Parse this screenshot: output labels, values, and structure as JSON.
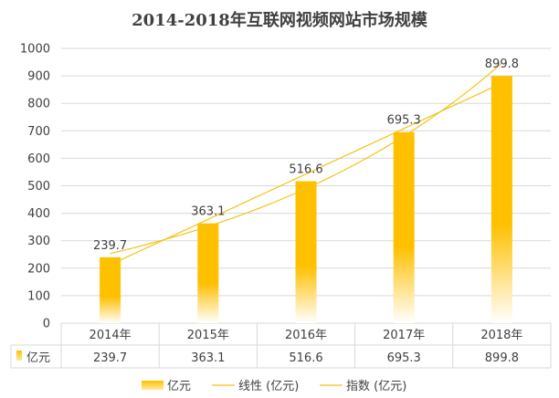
{
  "chart_data": {
    "type": "bar",
    "title": "2014-2018年互联网视频网站市场规模",
    "categories": [
      "2014年",
      "2015年",
      "2016年",
      "2017年",
      "2018年"
    ],
    "series": [
      {
        "name": "亿元",
        "values": [
          239.7,
          363.1,
          516.6,
          695.3,
          899.8
        ]
      }
    ],
    "value_labels": [
      "239.7",
      "363.1",
      "516.6",
      "695.3",
      "899.8"
    ],
    "ylim": [
      0,
      1000
    ],
    "yticks": [
      "0",
      "100",
      "200",
      "300",
      "400",
      "500",
      "600",
      "700",
      "800",
      "900",
      "1000"
    ],
    "grid": true,
    "data_table": true,
    "trendlines": [
      {
        "type": "linear",
        "label": "线性 (亿元)"
      },
      {
        "type": "exponential",
        "label": "指数 (亿元)"
      }
    ],
    "legend_position": "bottom",
    "colors": {
      "bar_top": "#ffc000",
      "bar_bottom": "#ffffff",
      "trend": "#f2c418",
      "text": "#404040",
      "grid": "#d9d9d9"
    }
  }
}
